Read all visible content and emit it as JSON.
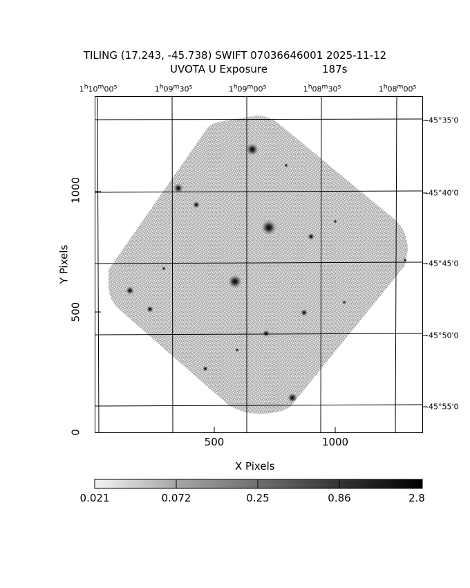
{
  "title": {
    "line1": "TILING (17.243, -45.738) SWIFT 07036646001 2025-11-12",
    "line2_left": "UVOTA U Exposure",
    "line2_right": "187s"
  },
  "axes": {
    "xlabel": "X Pixels",
    "ylabel": "Y Pixels",
    "x_ticks": [
      "500",
      "1000"
    ],
    "y_ticks": [
      "0",
      "500",
      "1000"
    ],
    "ra_ticks": [
      {
        "h": "1",
        "m": "10",
        "s": "00"
      },
      {
        "h": "1",
        "m": "09",
        "s": "30"
      },
      {
        "h": "1",
        "m": "09",
        "s": "00"
      },
      {
        "h": "1",
        "m": "08",
        "s": "30"
      },
      {
        "h": "1",
        "m": "08",
        "s": "00"
      }
    ],
    "dec_ticks": [
      "-45°35'0",
      "-45°40'0",
      "-45°45'0",
      "-45°50'0",
      "-45°55'0"
    ]
  },
  "colorbar": {
    "labels": [
      "0.021",
      "0.072",
      "0.25",
      "0.86",
      "2.8"
    ],
    "scale": "log"
  }
}
